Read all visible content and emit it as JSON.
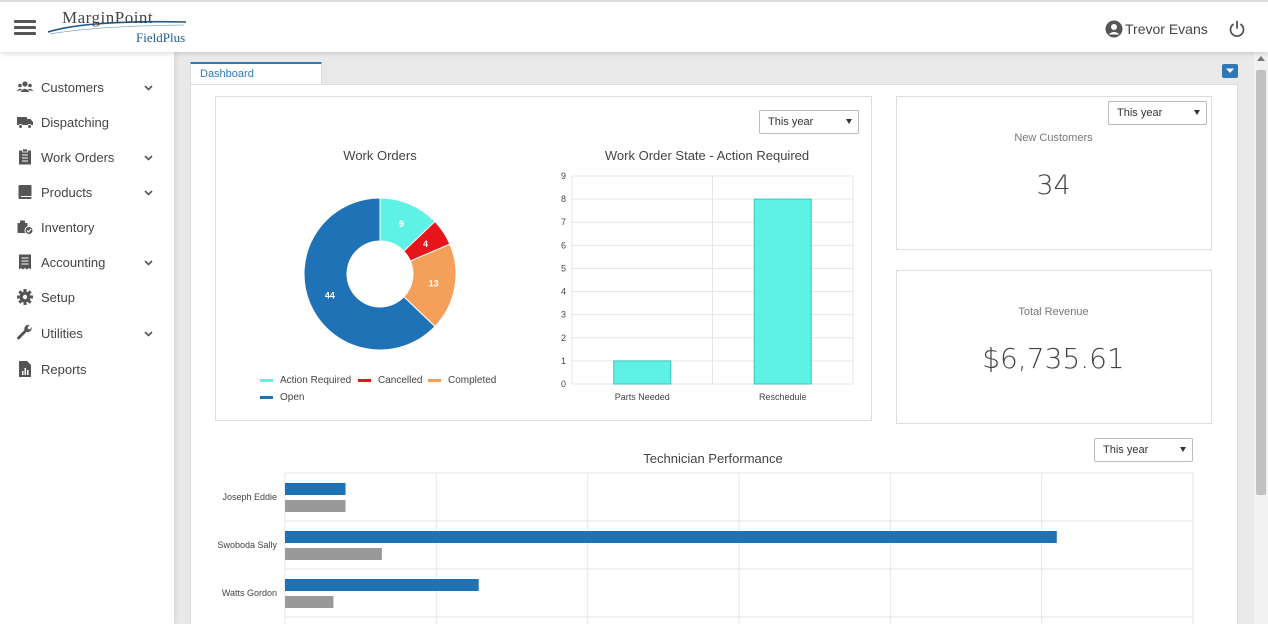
{
  "header": {
    "logo_top": "MarginPoint",
    "logo_bottom": "FieldPlus",
    "user_name": "Trevor Evans"
  },
  "sidebar": {
    "items": [
      {
        "label": "Customers",
        "icon": "users-icon",
        "has_children": true
      },
      {
        "label": "Dispatching",
        "icon": "truck-icon",
        "has_children": false
      },
      {
        "label": "Work Orders",
        "icon": "clipboard-icon",
        "has_children": true
      },
      {
        "label": "Products",
        "icon": "book-icon",
        "has_children": true
      },
      {
        "label": "Inventory",
        "icon": "inventory-icon",
        "has_children": false
      },
      {
        "label": "Accounting",
        "icon": "ledger-icon",
        "has_children": true
      },
      {
        "label": "Setup",
        "icon": "gear-icon",
        "has_children": false
      },
      {
        "label": "Utilities",
        "icon": "wrench-icon",
        "has_children": true
      },
      {
        "label": "Reports",
        "icon": "report-icon",
        "has_children": false
      }
    ]
  },
  "tabs": [
    {
      "label": "Dashboard"
    }
  ],
  "filters": {
    "work_orders_period": "This year",
    "new_customers_period": "This year",
    "technician_period": "This year"
  },
  "kpis": {
    "new_customers_label": "New Customers",
    "new_customers_value": "34",
    "total_revenue_label": "Total Revenue",
    "total_revenue_value": "$6,735.61"
  },
  "chart_data": [
    {
      "type": "pie",
      "title": "Work Orders",
      "labels": [
        "Action Required",
        "Cancelled",
        "Completed",
        "Open"
      ],
      "values": [
        9,
        4,
        13,
        44
      ],
      "colors": [
        "#5ef2e6",
        "#e8141c",
        "#f5a05a",
        "#1f72b5"
      ],
      "legend": "bottom"
    },
    {
      "type": "bar",
      "title": "Work Order State - Action Required",
      "categories": [
        "Parts Needed",
        "Reschedule"
      ],
      "values": [
        1,
        8
      ],
      "ylim": [
        0,
        9
      ],
      "yticks": [
        0,
        1,
        2,
        3,
        4,
        5,
        6,
        7,
        8,
        9
      ],
      "color": "#5ef2e6",
      "grid": true
    },
    {
      "type": "bar",
      "orientation": "horizontal",
      "title": "Technician Performance",
      "categories": [
        "Joseph Eddie",
        "Swoboda Sally",
        "Watts Gordon"
      ],
      "series": [
        {
          "values": [
            2,
            25.5,
            6.4
          ],
          "color": "#1f72b5"
        },
        {
          "values": [
            2,
            3.2,
            1.6
          ],
          "color": "#999999"
        }
      ],
      "xlim": [
        0,
        30
      ],
      "grid": true
    }
  ]
}
